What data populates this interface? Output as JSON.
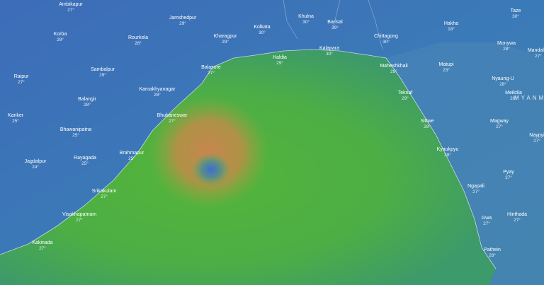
{
  "cities": [
    {
      "name": "Ambikapur",
      "temp": "27°"
    },
    {
      "name": "Korba",
      "temp": "28°"
    },
    {
      "name": "Raipur",
      "temp": "27°"
    },
    {
      "name": "Sambalpur",
      "temp": "29°"
    },
    {
      "name": "Rourkela",
      "temp": "28°"
    },
    {
      "name": "Jamshedpur",
      "temp": "29°"
    },
    {
      "name": "Kharagpur",
      "temp": "29°"
    },
    {
      "name": "Kolkata",
      "temp": "30°"
    },
    {
      "name": "Khulna",
      "temp": "30°"
    },
    {
      "name": "Barisal",
      "temp": "29°"
    },
    {
      "name": "Chittagong",
      "temp": "30°"
    },
    {
      "name": "Hakha",
      "temp": "18°"
    },
    {
      "name": "Taze",
      "temp": "30°"
    },
    {
      "name": "Monywa",
      "temp": "28°"
    },
    {
      "name": "Mandalay",
      "temp": "27°"
    },
    {
      "name": "Matupi",
      "temp": "23°"
    },
    {
      "name": "Nyaung-U",
      "temp": "28°"
    },
    {
      "name": "Meiktila",
      "temp": "26°"
    },
    {
      "name": "Magway",
      "temp": "27°"
    },
    {
      "name": "Naypyi",
      "temp": "27°"
    },
    {
      "name": "Maheshkhali",
      "temp": "29°"
    },
    {
      "name": "Balasore",
      "temp": "27°"
    },
    {
      "name": "Kamakhyanagar",
      "temp": "28°"
    },
    {
      "name": "Balangir",
      "temp": "28°"
    },
    {
      "name": "Bhubaneswar",
      "temp": "27°"
    },
    {
      "name": "Kanker",
      "temp": "25°"
    },
    {
      "name": "Bhawanipatna",
      "temp": "25°"
    },
    {
      "name": "Haldia",
      "temp": "29°"
    },
    {
      "name": "Kalapara",
      "temp": "30°"
    },
    {
      "name": "Teknaf",
      "temp": "29°"
    },
    {
      "name": "Sittwe",
      "temp": "28°"
    },
    {
      "name": "Kyaukpyu",
      "temp": "28°"
    },
    {
      "name": "Pyay",
      "temp": "27°"
    },
    {
      "name": "Jagdalpur",
      "temp": "24°"
    },
    {
      "name": "Rayagada",
      "temp": "25°"
    },
    {
      "name": "Brahmapur",
      "temp": "25°"
    },
    {
      "name": "Srikakulam",
      "temp": "27°"
    },
    {
      "name": "Ngapali",
      "temp": "27°"
    },
    {
      "name": "Visakhapatnam",
      "temp": "27°"
    },
    {
      "name": "Hinthada",
      "temp": "27°"
    },
    {
      "name": "Gwa",
      "temp": "27°"
    },
    {
      "name": "Kakinada",
      "temp": "27°"
    },
    {
      "name": "Pathein",
      "temp": "28°"
    }
  ],
  "country_label": "MYANMAR"
}
